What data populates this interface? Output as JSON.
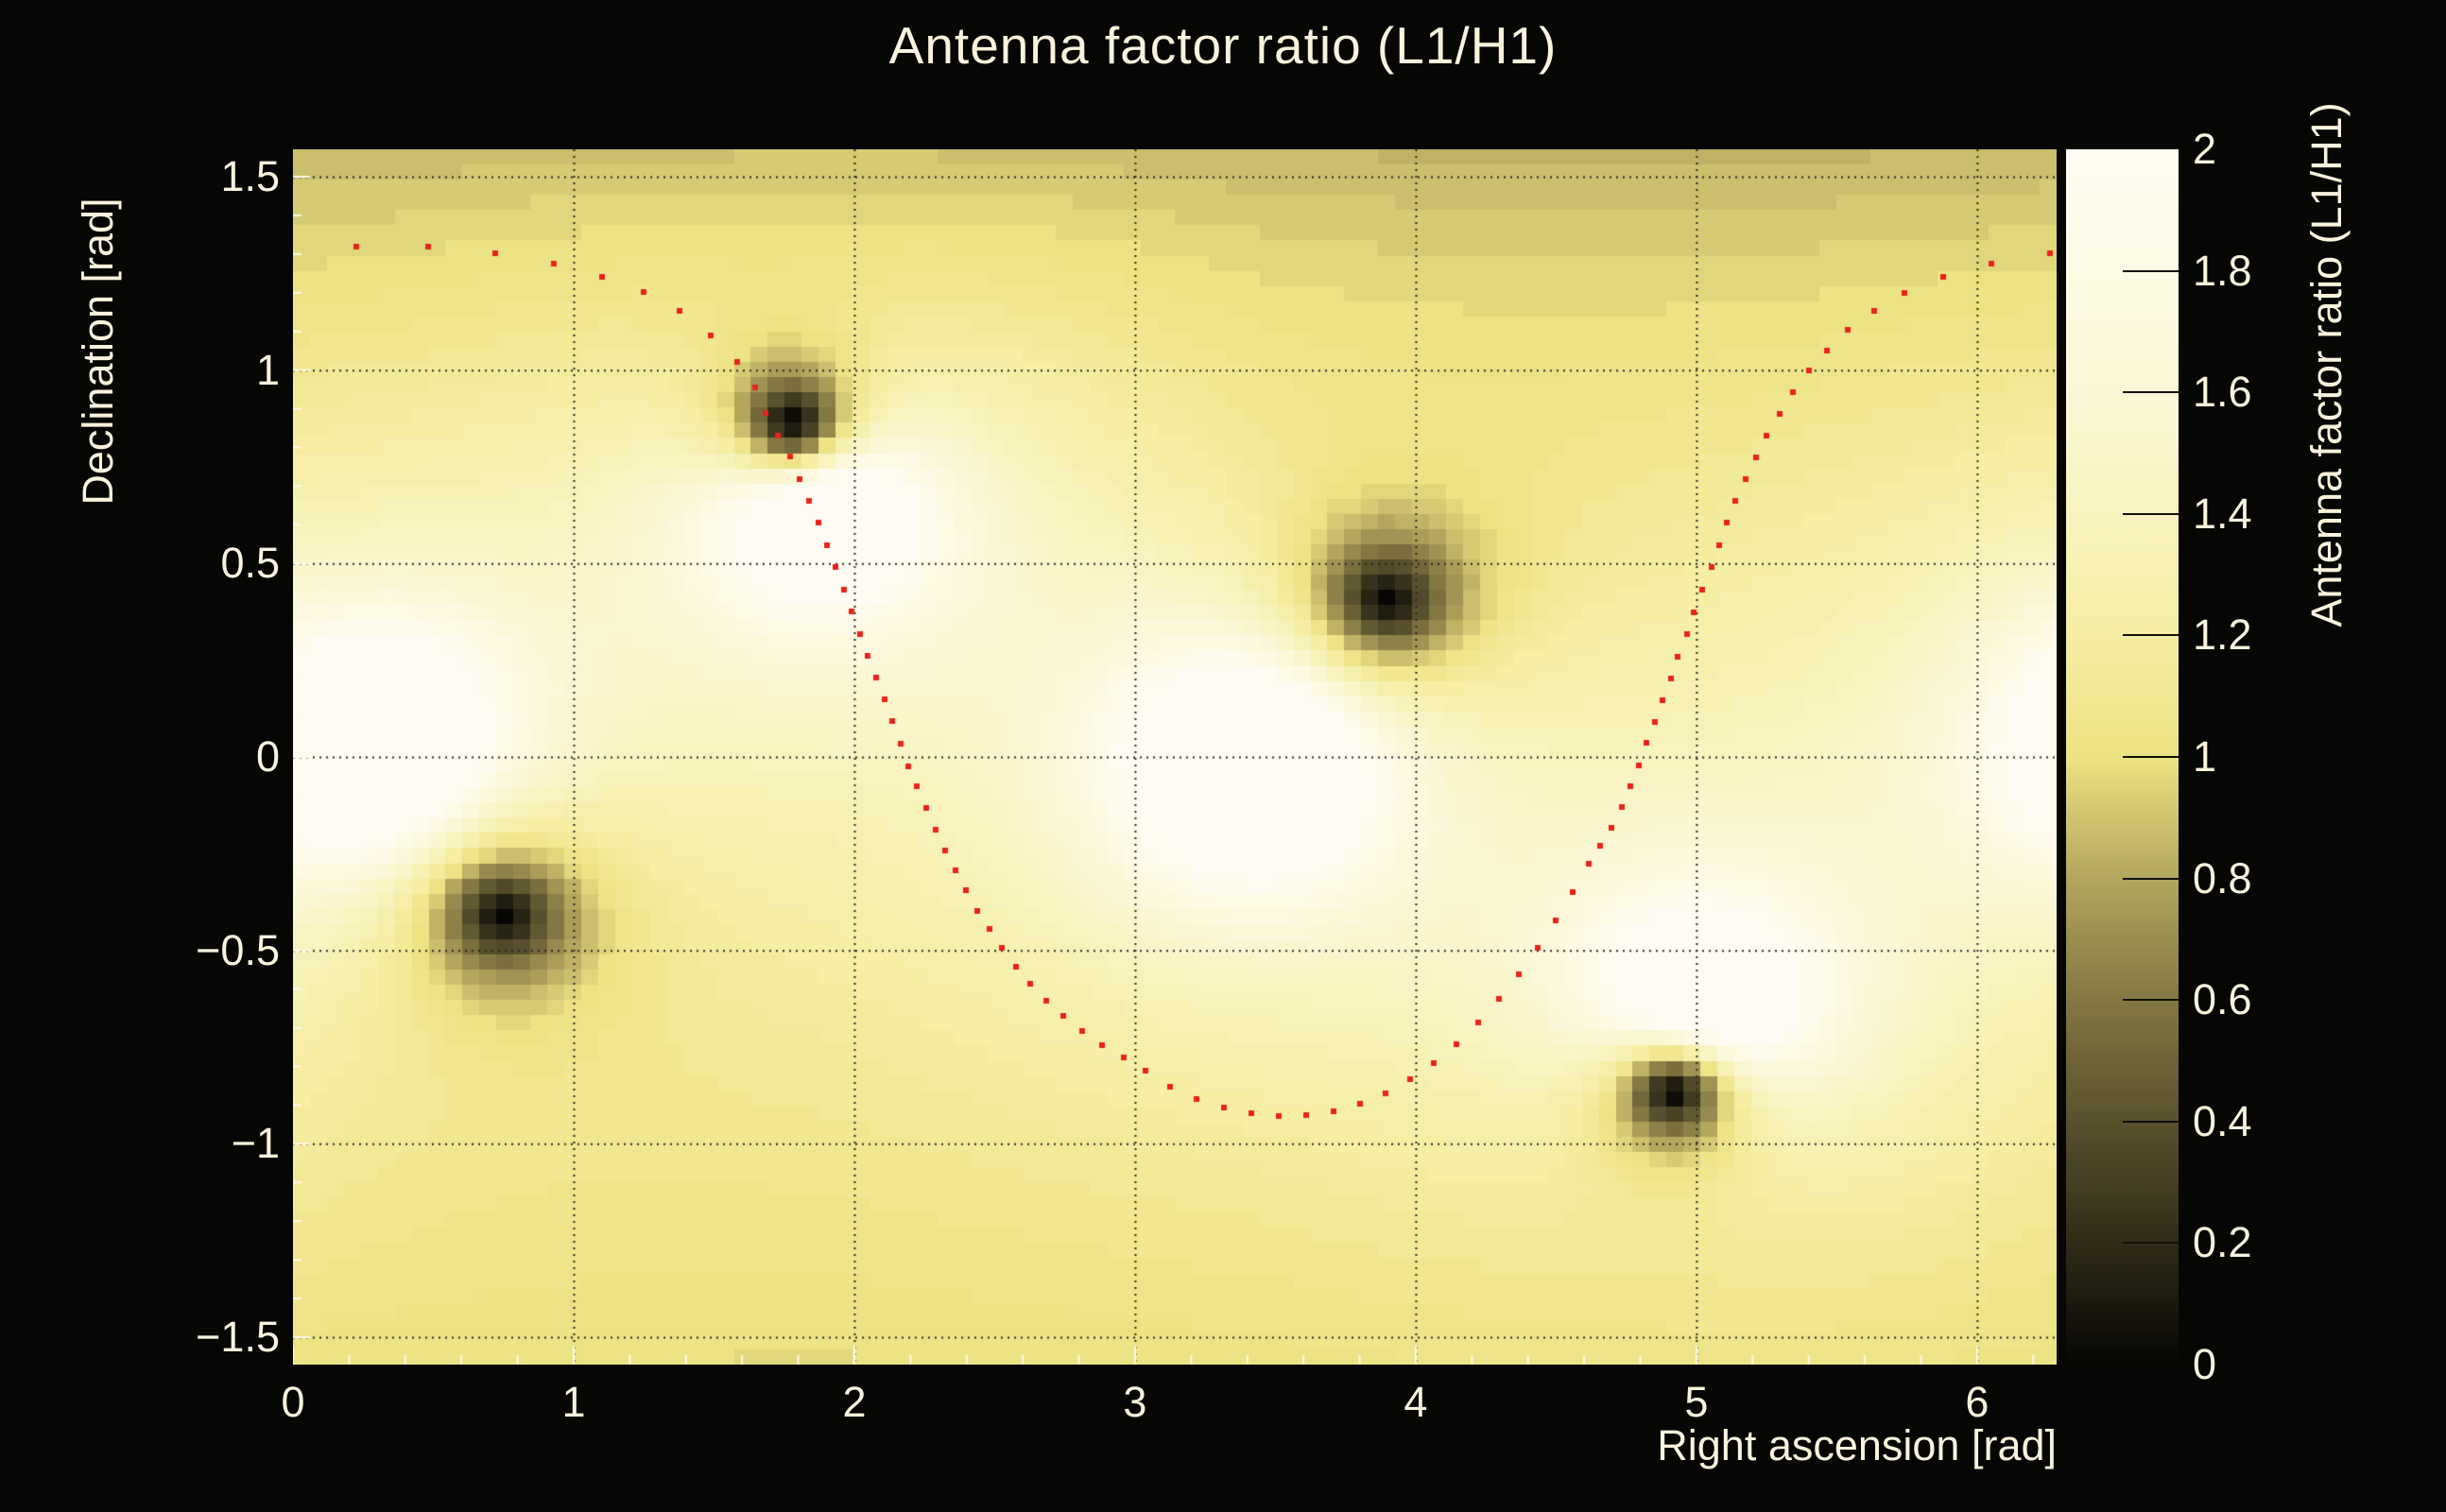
{
  "title": "Antenna factor ratio (L1/H1)",
  "colors": {
    "background": "#060605",
    "text": "#f8f3dc",
    "track_dot": "#e8231c",
    "gridline": "#2a2820",
    "tick_mark": "#fdfbe8",
    "colorbar_tick": "#111008"
  },
  "axes": {
    "x_title": "Right ascension [rad]",
    "y_title": "Declination [rad]",
    "x_ticks": [
      "0",
      "1",
      "2",
      "3",
      "4",
      "5",
      "6"
    ],
    "x_tick_values": [
      0,
      1,
      2,
      3,
      4,
      5,
      6
    ],
    "y_ticks": [
      "1.5",
      "1",
      "0.5",
      "0",
      "−0.5",
      "−1",
      "−1.5"
    ],
    "y_tick_values": [
      1.5,
      1,
      0.5,
      0,
      -0.5,
      -1,
      -1.5
    ],
    "x_range": [
      0,
      6.2832
    ],
    "y_range": [
      -1.5708,
      1.5708
    ],
    "x_minor_step": 0.2,
    "y_minor_step": 0.1
  },
  "colorbar": {
    "title": "Antenna factor ratio (L1/H1)",
    "tick_labels": [
      "0",
      "0.2",
      "0.4",
      "0.6",
      "0.8",
      "1",
      "1.2",
      "1.4",
      "1.6",
      "1.8",
      "2"
    ],
    "tick_values": [
      0,
      0.2,
      0.4,
      0.6,
      0.8,
      1,
      1.2,
      1.4,
      1.6,
      1.8,
      2
    ],
    "range": [
      0,
      2
    ]
  },
  "chart_data": {
    "type": "heatmap",
    "title": "Antenna factor ratio (L1/H1)",
    "xlabel": "Right ascension [rad]",
    "ylabel": "Declination [rad]",
    "zlabel": "Antenna factor ratio (L1/H1)",
    "xlim": [
      0,
      6.2832
    ],
    "ylim": [
      -1.5708,
      1.5708
    ],
    "zlim": [
      0,
      2
    ],
    "grid": true,
    "nbins_x": 104,
    "nbins_y": 80,
    "palette_stops": [
      [
        0.0,
        "#070604"
      ],
      [
        0.2,
        "#302b18"
      ],
      [
        0.4,
        "#59512d"
      ],
      [
        0.6,
        "#837744"
      ],
      [
        0.8,
        "#b2a75d"
      ],
      [
        1.0,
        "#ece384"
      ],
      [
        1.2,
        "#f5eea3"
      ],
      [
        1.4,
        "#f8f3bf"
      ],
      [
        1.6,
        "#fbf7d6"
      ],
      [
        1.8,
        "#fdfae6"
      ],
      [
        2.0,
        "#fefcf2"
      ]
    ],
    "field_model": {
      "base": 1.0,
      "dark_nulls_ra_dec": [
        [
          1.78,
          0.87
        ],
        [
          0.75,
          -0.41
        ],
        [
          3.9,
          0.41
        ],
        [
          4.92,
          -0.87
        ]
      ],
      "bright_peaks_ra_dec": [
        [
          0.28,
          0.02
        ],
        [
          3.42,
          -0.02
        ],
        [
          1.87,
          0.67
        ],
        [
          5.01,
          -0.67
        ]
      ],
      "well_radius": 0.28,
      "well_exponent": 0.75,
      "peak_radius": 0.33,
      "peak_amplitude": 3.4,
      "dec_stretch": 1.5,
      "lat_dim_north": 0.22,
      "lat_dim_south": 0.1,
      "quantize_levels": 25
    },
    "series": [
      {
        "name": "sky-track",
        "marker": "red-dot",
        "points_ra_dec": [
          [
            0.226,
            1.318
          ],
          [
            0.481,
            1.318
          ],
          [
            0.72,
            1.303
          ],
          [
            0.929,
            1.276
          ],
          [
            1.101,
            1.242
          ],
          [
            1.249,
            1.203
          ],
          [
            1.377,
            1.152
          ],
          [
            1.488,
            1.09
          ],
          [
            1.582,
            1.022
          ],
          [
            1.646,
            0.956
          ],
          [
            1.684,
            0.89
          ],
          [
            1.727,
            0.831
          ],
          [
            1.771,
            0.777
          ],
          [
            1.805,
            0.719
          ],
          [
            1.838,
            0.663
          ],
          [
            1.872,
            0.606
          ],
          [
            1.902,
            0.548
          ],
          [
            1.933,
            0.491
          ],
          [
            1.963,
            0.433
          ],
          [
            1.99,
            0.377
          ],
          [
            2.02,
            0.318
          ],
          [
            2.047,
            0.262
          ],
          [
            2.077,
            0.205
          ],
          [
            2.108,
            0.149
          ],
          [
            2.135,
            0.093
          ],
          [
            2.165,
            0.034
          ],
          [
            2.192,
            -0.024
          ],
          [
            2.222,
            -0.076
          ],
          [
            2.256,
            -0.132
          ],
          [
            2.29,
            -0.188
          ],
          [
            2.323,
            -0.242
          ],
          [
            2.36,
            -0.293
          ],
          [
            2.397,
            -0.345
          ],
          [
            2.438,
            -0.399
          ],
          [
            2.481,
            -0.445
          ],
          [
            2.525,
            -0.494
          ],
          [
            2.576,
            -0.543
          ],
          [
            2.626,
            -0.587
          ],
          [
            2.684,
            -0.631
          ],
          [
            2.744,
            -0.67
          ],
          [
            2.811,
            -0.709
          ],
          [
            2.882,
            -0.746
          ],
          [
            2.96,
            -0.777
          ],
          [
            3.037,
            -0.812
          ],
          [
            3.125,
            -0.853
          ],
          [
            3.219,
            -0.885
          ],
          [
            3.316,
            -0.907
          ],
          [
            3.414,
            -0.922
          ],
          [
            3.512,
            -0.929
          ],
          [
            3.609,
            -0.927
          ],
          [
            3.707,
            -0.917
          ],
          [
            3.801,
            -0.897
          ],
          [
            3.892,
            -0.87
          ],
          [
            3.98,
            -0.834
          ],
          [
            4.064,
            -0.792
          ],
          [
            4.145,
            -0.743
          ],
          [
            4.222,
            -0.687
          ],
          [
            4.296,
            -0.626
          ],
          [
            4.367,
            -0.562
          ],
          [
            4.434,
            -0.494
          ],
          [
            4.498,
            -0.423
          ],
          [
            4.559,
            -0.35
          ],
          [
            4.616,
            -0.276
          ],
          [
            4.657,
            -0.23
          ],
          [
            4.697,
            -0.183
          ],
          [
            4.734,
            -0.13
          ],
          [
            4.764,
            -0.076
          ],
          [
            4.795,
            -0.022
          ],
          [
            4.822,
            0.037
          ],
          [
            4.852,
            0.09
          ],
          [
            4.879,
            0.147
          ],
          [
            4.909,
            0.203
          ],
          [
            4.933,
            0.259
          ],
          [
            4.966,
            0.318
          ],
          [
            4.99,
            0.374
          ],
          [
            5.02,
            0.433
          ],
          [
            5.054,
            0.491
          ],
          [
            5.081,
            0.548
          ],
          [
            5.108,
            0.606
          ],
          [
            5.138,
            0.663
          ],
          [
            5.175,
            0.719
          ],
          [
            5.212,
            0.775
          ],
          [
            5.249,
            0.831
          ],
          [
            5.296,
            0.888
          ],
          [
            5.343,
            0.944
          ],
          [
            5.401,
            0.998
          ],
          [
            5.465,
            1.051
          ],
          [
            5.539,
            1.105
          ],
          [
            5.633,
            1.154
          ],
          [
            5.741,
            1.2
          ],
          [
            5.879,
            1.242
          ],
          [
            6.051,
            1.274
          ],
          [
            6.259,
            1.303
          ]
        ]
      }
    ],
    "legend": null
  }
}
